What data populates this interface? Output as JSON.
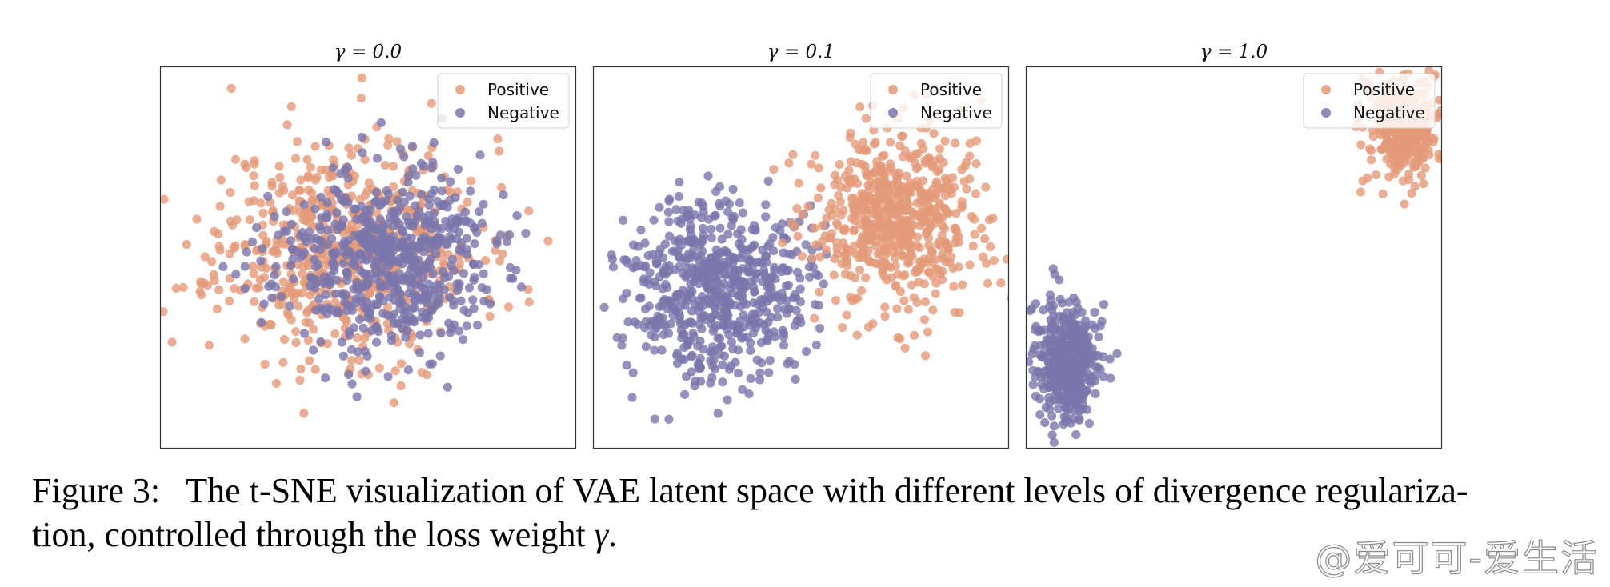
{
  "figure_caption": {
    "line1": "Figure 3:  The t-SNE visualization of VAE latent space with different levels of divergence regulariza-",
    "line2_prefix": "tion, controlled through the loss weight ",
    "line2_symbol": "γ",
    "line2_suffix": "."
  },
  "watermark": "@爱可可-爱生活",
  "colors": {
    "positive": "#e39a78",
    "negative": "#7a76ab",
    "axes": "#333333"
  },
  "chart_data": [
    {
      "type": "scatter",
      "title": "γ = 0.0",
      "xlim": [
        -4,
        4
      ],
      "ylim": [
        -4,
        4
      ],
      "legend": {
        "position": "top-right",
        "entries": [
          "Positive",
          "Negative"
        ]
      },
      "series": [
        {
          "name": "Positive",
          "center": [
            -0.4,
            0.2
          ],
          "spread": [
            1.25,
            1.15
          ],
          "count": 620,
          "seed": 11
        },
        {
          "name": "Negative",
          "center": [
            0.3,
            -0.1
          ],
          "spread": [
            1.05,
            0.95
          ],
          "count": 620,
          "seed": 23
        }
      ]
    },
    {
      "type": "scatter",
      "title": "γ = 0.1",
      "xlim": [
        -4,
        4
      ],
      "ylim": [
        -4,
        4
      ],
      "legend": {
        "position": "top-right",
        "entries": [
          "Positive",
          "Negative"
        ]
      },
      "series": [
        {
          "name": "Negative",
          "center": [
            -1.6,
            -0.6
          ],
          "spread": [
            0.85,
            0.95
          ],
          "count": 620,
          "seed": 37
        },
        {
          "name": "Positive",
          "center": [
            1.9,
            0.8
          ],
          "spread": [
            0.85,
            0.95
          ],
          "count": 620,
          "seed": 53
        }
      ]
    },
    {
      "type": "scatter",
      "title": "γ = 1.0",
      "xlim": [
        -4,
        4
      ],
      "ylim": [
        -4,
        4
      ],
      "legend": {
        "position": "top-right",
        "entries": [
          "Positive",
          "Negative"
        ]
      },
      "series": [
        {
          "name": "Positive",
          "center": [
            3.25,
            2.7
          ],
          "spread": [
            0.32,
            0.5
          ],
          "count": 420,
          "seed": 71
        },
        {
          "name": "Negative",
          "center": [
            -3.2,
            -2.2
          ],
          "spread": [
            0.3,
            0.65
          ],
          "count": 420,
          "seed": 89
        }
      ]
    }
  ]
}
